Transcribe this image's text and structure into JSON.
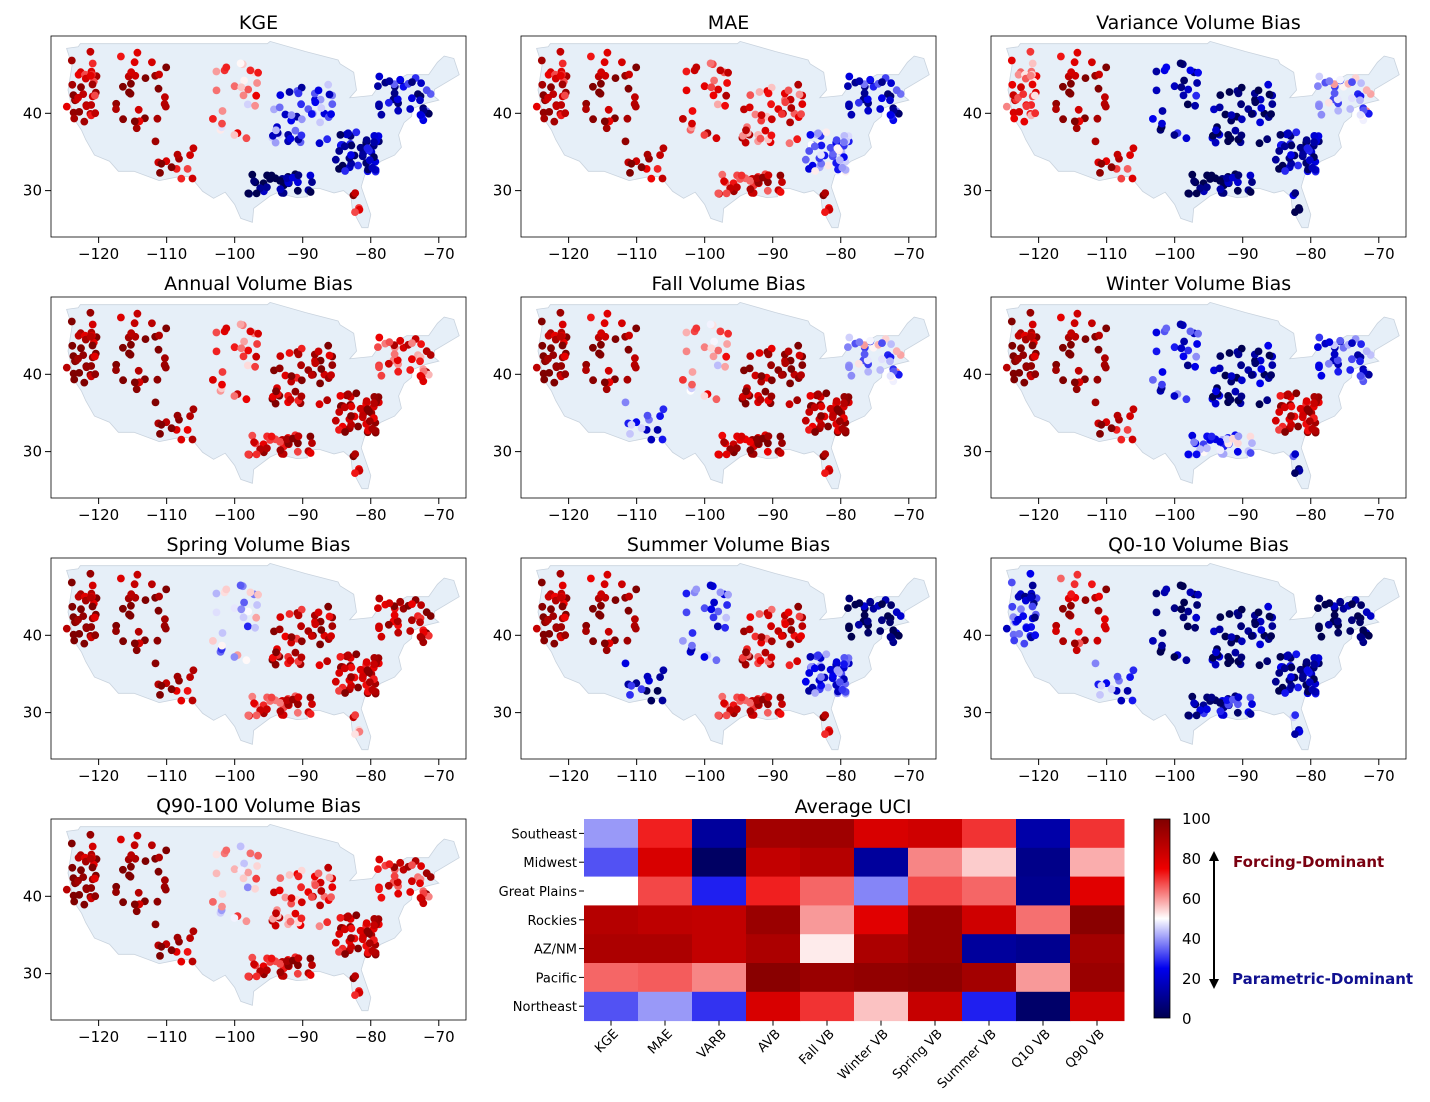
{
  "figure": {
    "colorbar": {
      "ticks": [
        "100",
        "80",
        "60",
        "40",
        "20",
        "0"
      ],
      "annotations": {
        "top": "Forcing-Dominant",
        "bottom": "Parametric-Dominant"
      }
    }
  },
  "chart_data": [
    {
      "type": "scatter",
      "title": "KGE",
      "xlim": [
        -127,
        -66
      ],
      "ylim": [
        24,
        50
      ],
      "xticks": [
        "−120",
        "−110",
        "−100",
        "−90",
        "−80",
        "−70"
      ],
      "yticks": [
        "30",
        "40"
      ],
      "color_scale": "bwr 0-100",
      "regional_bias": {
        "pacific": 85,
        "rockies": 88,
        "southwest": 85,
        "plains": 62,
        "midwest": 28,
        "northeast": 20,
        "southeast": 12,
        "gulf": 8,
        "florida": 85
      }
    },
    {
      "type": "scatter",
      "title": "MAE",
      "xlim": [
        -127,
        -66
      ],
      "ylim": [
        24,
        50
      ],
      "xticks": [
        "−120",
        "−110",
        "−100",
        "−90",
        "−80",
        "−70"
      ],
      "yticks": [
        "30",
        "40"
      ],
      "color_scale": "bwr 0-100",
      "regional_bias": {
        "pacific": 85,
        "rockies": 88,
        "southwest": 88,
        "plains": 75,
        "midwest": 72,
        "northeast": 22,
        "southeast": 35,
        "gulf": 82,
        "florida": 90
      }
    },
    {
      "type": "scatter",
      "title": "Variance Volume Bias",
      "xlim": [
        -127,
        -66
      ],
      "ylim": [
        24,
        50
      ],
      "xticks": [
        "−120",
        "−110",
        "−100",
        "−90",
        "−80",
        "−70"
      ],
      "yticks": [
        "30",
        "40"
      ],
      "color_scale": "bwr 0-100",
      "regional_bias": {
        "pacific": 70,
        "rockies": 88,
        "southwest": 82,
        "plains": 15,
        "midwest": 5,
        "northeast": 45,
        "southeast": 12,
        "gulf": 6,
        "florida": 8
      }
    },
    {
      "type": "scatter",
      "title": "Annual Volume Bias",
      "xlim": [
        -127,
        -66
      ],
      "ylim": [
        24,
        50
      ],
      "xticks": [
        "−120",
        "−110",
        "−100",
        "−90",
        "−80",
        "−70"
      ],
      "yticks": [
        "30",
        "40"
      ],
      "color_scale": "bwr 0-100",
      "regional_bias": {
        "pacific": 95,
        "rockies": 94,
        "southwest": 92,
        "plains": 70,
        "midwest": 88,
        "northeast": 75,
        "southeast": 86,
        "gulf": 85,
        "florida": 90
      }
    },
    {
      "type": "scatter",
      "title": "Fall Volume Bias",
      "xlim": [
        -127,
        -66
      ],
      "ylim": [
        24,
        50
      ],
      "xticks": [
        "−120",
        "−110",
        "−100",
        "−90",
        "−80",
        "−70"
      ],
      "yticks": [
        "30",
        "40"
      ],
      "color_scale": "bwr 0-100",
      "regional_bias": {
        "pacific": 94,
        "rockies": 88,
        "southwest": 30,
        "plains": 60,
        "midwest": 92,
        "northeast": 45,
        "southeast": 86,
        "gulf": 92,
        "florida": 90
      }
    },
    {
      "type": "scatter",
      "title": "Winter Volume Bias",
      "xlim": [
        -127,
        -66
      ],
      "ylim": [
        24,
        50
      ],
      "xticks": [
        "−120",
        "−110",
        "−100",
        "−90",
        "−80",
        "−70"
      ],
      "yticks": [
        "30",
        "40"
      ],
      "color_scale": "bwr 0-100",
      "regional_bias": {
        "pacific": 95,
        "rockies": 92,
        "southwest": 85,
        "plains": 25,
        "midwest": 8,
        "northeast": 30,
        "southeast": 82,
        "gulf": 40,
        "florida": 20
      }
    },
    {
      "type": "scatter",
      "title": "Spring Volume Bias",
      "xlim": [
        -127,
        -66
      ],
      "ylim": [
        24,
        50
      ],
      "xticks": [
        "−120",
        "−110",
        "−100",
        "−90",
        "−80",
        "−70"
      ],
      "yticks": [
        "30",
        "40"
      ],
      "color_scale": "bwr 0-100",
      "regional_bias": {
        "pacific": 95,
        "rockies": 94,
        "southwest": 90,
        "plains": 45,
        "midwest": 85,
        "northeast": 88,
        "southeast": 82,
        "gulf": 80,
        "florida": 70
      }
    },
    {
      "type": "scatter",
      "title": "Summer Volume Bias",
      "xlim": [
        -127,
        -66
      ],
      "ylim": [
        24,
        50
      ],
      "xticks": [
        "−120",
        "−110",
        "−100",
        "−90",
        "−80",
        "−70"
      ],
      "yticks": [
        "30",
        "40"
      ],
      "color_scale": "bwr 0-100",
      "regional_bias": {
        "pacific": 92,
        "rockies": 90,
        "southwest": 15,
        "plains": 30,
        "midwest": 80,
        "northeast": 6,
        "southeast": 25,
        "gulf": 82,
        "florida": 88
      }
    },
    {
      "type": "scatter",
      "title": "Q0-10 Volume Bias",
      "xlim": [
        -127,
        -66
      ],
      "ylim": [
        24,
        50
      ],
      "xticks": [
        "−120",
        "−110",
        "−100",
        "−90",
        "−80",
        "−70"
      ],
      "yticks": [
        "30",
        "40"
      ],
      "color_scale": "bwr 0-100",
      "regional_bias": {
        "pacific": 25,
        "rockies": 80,
        "southwest": 30,
        "plains": 6,
        "midwest": 5,
        "northeast": 5,
        "southeast": 10,
        "gulf": 20,
        "florida": 30
      }
    },
    {
      "type": "scatter",
      "title": "Q90-100 Volume Bias",
      "xlim": [
        -127,
        -66
      ],
      "ylim": [
        24,
        50
      ],
      "xticks": [
        "−120",
        "−110",
        "−100",
        "−90",
        "−80",
        "−70"
      ],
      "yticks": [
        "30",
        "40"
      ],
      "color_scale": "bwr 0-100",
      "regional_bias": {
        "pacific": 95,
        "rockies": 94,
        "southwest": 90,
        "plains": 55,
        "midwest": 70,
        "northeast": 80,
        "southeast": 82,
        "gulf": 85,
        "florida": 88
      }
    },
    {
      "type": "heatmap",
      "title": "Average UCI",
      "rows": [
        "Southeast",
        "Midwest",
        "Great Plains",
        "Rockies",
        "AZ/NM",
        "Pacific",
        "Northeast"
      ],
      "columns": [
        "KGE",
        "MAE",
        "VARB",
        "AVB",
        "Fall VB",
        "Winter VB",
        "Spring VB",
        "Summer VB",
        "Q10 VB",
        "Q90 VB"
      ],
      "values": [
        [
          40,
          72,
          12,
          92,
          93,
          80,
          82,
          70,
          14,
          70
        ],
        [
          33,
          80,
          3,
          85,
          88,
          12,
          62,
          55,
          9,
          58
        ],
        [
          50,
          68,
          28,
          72,
          65,
          38,
          68,
          65,
          10,
          78
        ],
        [
          88,
          86,
          85,
          94,
          60,
          78,
          94,
          82,
          64,
          98
        ],
        [
          90,
          90,
          85,
          90,
          52,
          90,
          94,
          12,
          10,
          92
        ],
        [
          65,
          66,
          62,
          98,
          94,
          96,
          97,
          92,
          60,
          94
        ],
        [
          33,
          40,
          30,
          80,
          70,
          56,
          84,
          28,
          4,
          82
        ]
      ],
      "vmin": 0,
      "vmax": 100,
      "colormap": "seismic"
    }
  ]
}
